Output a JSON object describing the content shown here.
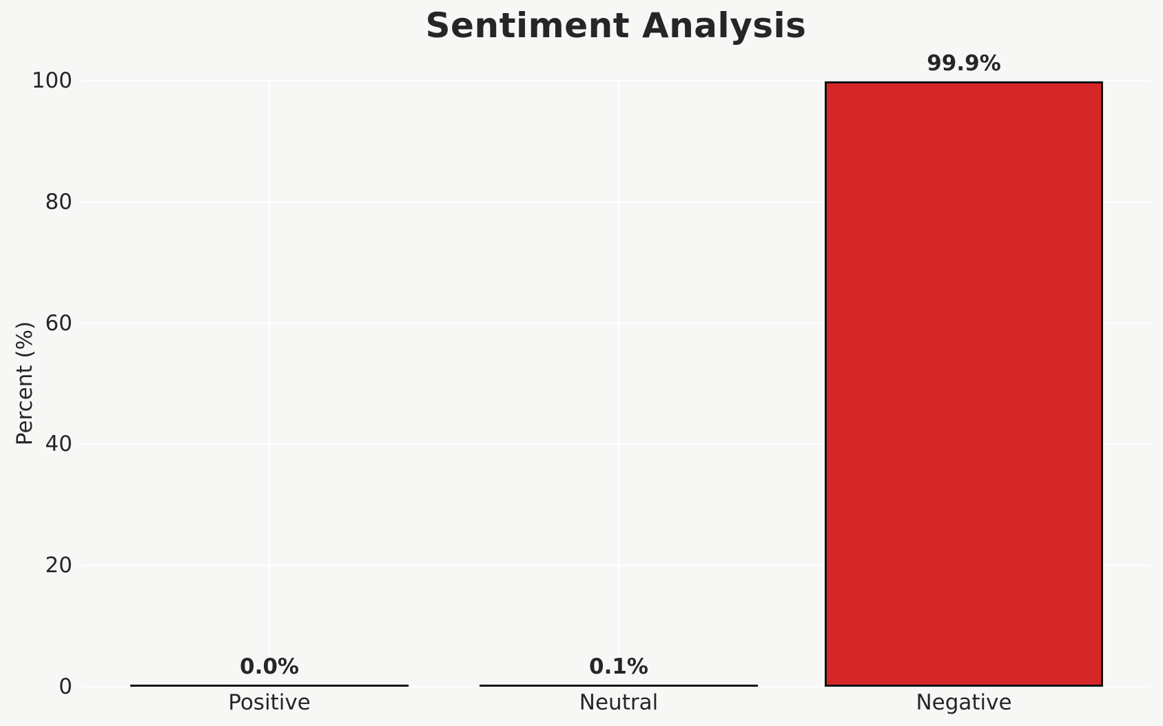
{
  "chart_data": {
    "type": "bar",
    "title": "Sentiment Analysis",
    "ylabel": "Percent (%)",
    "xlabel": "",
    "categories": [
      "Positive",
      "Neutral",
      "Negative"
    ],
    "values": [
      0.0,
      0.1,
      99.9
    ],
    "value_labels": [
      "0.0%",
      "0.1%",
      "99.9%"
    ],
    "yticks": [
      "0",
      "20",
      "40",
      "60",
      "80",
      "100"
    ],
    "ytick_values": [
      0,
      20,
      40,
      60,
      80,
      100
    ],
    "ylim": [
      0,
      100
    ],
    "grid": "on",
    "legend": "none",
    "colors": {
      "bar_fill": "#d62728",
      "bar_edge": "#111111",
      "background": "#f7f7f6",
      "gridline": "#ffffff",
      "text": "#262626"
    }
  }
}
